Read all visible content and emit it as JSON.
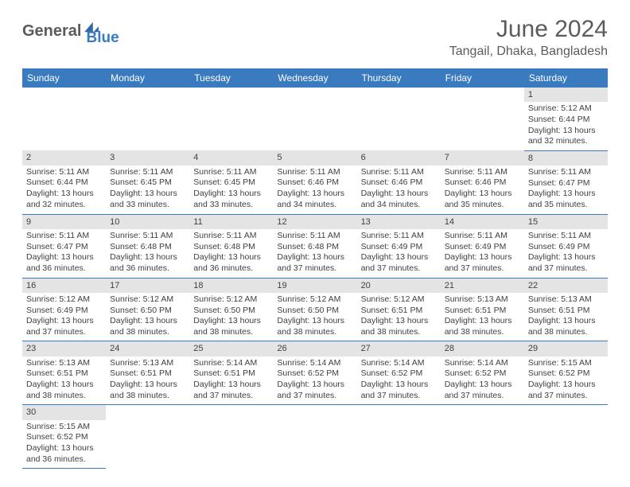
{
  "logo": {
    "part1": "General",
    "part2": "Blue",
    "icon_color": "#2f6aa8"
  },
  "title": "June 2024",
  "location": "Tangail, Dhaka, Bangladesh",
  "colors": {
    "header_bg": "#3a7bbf",
    "header_text": "#ffffff",
    "daybar_bg": "#e4e4e4",
    "text": "#404040",
    "rule": "#3a7bbf"
  },
  "weekdays": [
    "Sunday",
    "Monday",
    "Tuesday",
    "Wednesday",
    "Thursday",
    "Friday",
    "Saturday"
  ],
  "weeks": [
    [
      null,
      null,
      null,
      null,
      null,
      null,
      {
        "d": "1",
        "sr": "5:12 AM",
        "ss": "6:44 PM",
        "dl": "13 hours and 32 minutes."
      }
    ],
    [
      {
        "d": "2",
        "sr": "5:11 AM",
        "ss": "6:44 PM",
        "dl": "13 hours and 32 minutes."
      },
      {
        "d": "3",
        "sr": "5:11 AM",
        "ss": "6:45 PM",
        "dl": "13 hours and 33 minutes."
      },
      {
        "d": "4",
        "sr": "5:11 AM",
        "ss": "6:45 PM",
        "dl": "13 hours and 33 minutes."
      },
      {
        "d": "5",
        "sr": "5:11 AM",
        "ss": "6:46 PM",
        "dl": "13 hours and 34 minutes."
      },
      {
        "d": "6",
        "sr": "5:11 AM",
        "ss": "6:46 PM",
        "dl": "13 hours and 34 minutes."
      },
      {
        "d": "7",
        "sr": "5:11 AM",
        "ss": "6:46 PM",
        "dl": "13 hours and 35 minutes."
      },
      {
        "d": "8",
        "sr": "5:11 AM",
        "ss": "6:47 PM",
        "dl": "13 hours and 35 minutes."
      }
    ],
    [
      {
        "d": "9",
        "sr": "5:11 AM",
        "ss": "6:47 PM",
        "dl": "13 hours and 36 minutes."
      },
      {
        "d": "10",
        "sr": "5:11 AM",
        "ss": "6:48 PM",
        "dl": "13 hours and 36 minutes."
      },
      {
        "d": "11",
        "sr": "5:11 AM",
        "ss": "6:48 PM",
        "dl": "13 hours and 36 minutes."
      },
      {
        "d": "12",
        "sr": "5:11 AM",
        "ss": "6:48 PM",
        "dl": "13 hours and 37 minutes."
      },
      {
        "d": "13",
        "sr": "5:11 AM",
        "ss": "6:49 PM",
        "dl": "13 hours and 37 minutes."
      },
      {
        "d": "14",
        "sr": "5:11 AM",
        "ss": "6:49 PM",
        "dl": "13 hours and 37 minutes."
      },
      {
        "d": "15",
        "sr": "5:11 AM",
        "ss": "6:49 PM",
        "dl": "13 hours and 37 minutes."
      }
    ],
    [
      {
        "d": "16",
        "sr": "5:12 AM",
        "ss": "6:49 PM",
        "dl": "13 hours and 37 minutes."
      },
      {
        "d": "17",
        "sr": "5:12 AM",
        "ss": "6:50 PM",
        "dl": "13 hours and 38 minutes."
      },
      {
        "d": "18",
        "sr": "5:12 AM",
        "ss": "6:50 PM",
        "dl": "13 hours and 38 minutes."
      },
      {
        "d": "19",
        "sr": "5:12 AM",
        "ss": "6:50 PM",
        "dl": "13 hours and 38 minutes."
      },
      {
        "d": "20",
        "sr": "5:12 AM",
        "ss": "6:51 PM",
        "dl": "13 hours and 38 minutes."
      },
      {
        "d": "21",
        "sr": "5:13 AM",
        "ss": "6:51 PM",
        "dl": "13 hours and 38 minutes."
      },
      {
        "d": "22",
        "sr": "5:13 AM",
        "ss": "6:51 PM",
        "dl": "13 hours and 38 minutes."
      }
    ],
    [
      {
        "d": "23",
        "sr": "5:13 AM",
        "ss": "6:51 PM",
        "dl": "13 hours and 38 minutes."
      },
      {
        "d": "24",
        "sr": "5:13 AM",
        "ss": "6:51 PM",
        "dl": "13 hours and 38 minutes."
      },
      {
        "d": "25",
        "sr": "5:14 AM",
        "ss": "6:51 PM",
        "dl": "13 hours and 37 minutes."
      },
      {
        "d": "26",
        "sr": "5:14 AM",
        "ss": "6:52 PM",
        "dl": "13 hours and 37 minutes."
      },
      {
        "d": "27",
        "sr": "5:14 AM",
        "ss": "6:52 PM",
        "dl": "13 hours and 37 minutes."
      },
      {
        "d": "28",
        "sr": "5:14 AM",
        "ss": "6:52 PM",
        "dl": "13 hours and 37 minutes."
      },
      {
        "d": "29",
        "sr": "5:15 AM",
        "ss": "6:52 PM",
        "dl": "13 hours and 37 minutes."
      }
    ],
    [
      {
        "d": "30",
        "sr": "5:15 AM",
        "ss": "6:52 PM",
        "dl": "13 hours and 36 minutes."
      },
      null,
      null,
      null,
      null,
      null,
      null
    ]
  ],
  "labels": {
    "sunrise": "Sunrise:",
    "sunset": "Sunset:",
    "daylight": "Daylight:"
  }
}
